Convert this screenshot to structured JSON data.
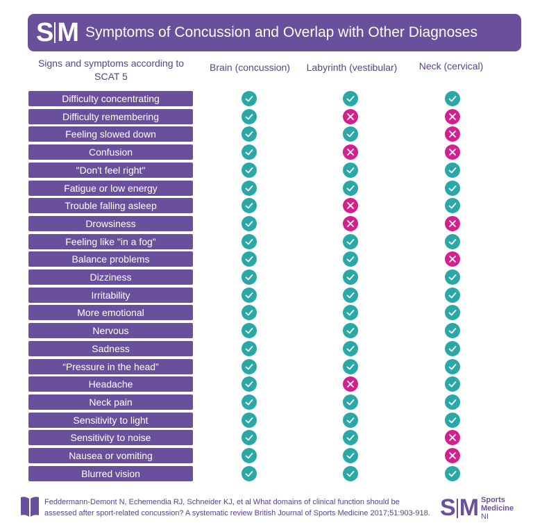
{
  "header": {
    "logo": "SM",
    "title": "Symptoms of Concussion and Overlap with Other Diagnoses"
  },
  "columns": {
    "symptoms": "Signs and symptoms according to SCAT 5",
    "brain": "Brain (concussion)",
    "labyrinth": "Labyrinth (vestibular)",
    "neck": "Neck (cervical)"
  },
  "colors": {
    "purple": "#6a4f9c",
    "check": "#2aa8a8",
    "cross": "#d4208f"
  },
  "rows": [
    {
      "label": "Difficulty concentrating",
      "brain": true,
      "labyrinth": true,
      "neck": true
    },
    {
      "label": "Difficulty remembering",
      "brain": true,
      "labyrinth": false,
      "neck": false
    },
    {
      "label": "Feeling slowed down",
      "brain": true,
      "labyrinth": true,
      "neck": false
    },
    {
      "label": "Confusion",
      "brain": true,
      "labyrinth": false,
      "neck": false
    },
    {
      "label": "\"Don't feel right\"",
      "brain": true,
      "labyrinth": true,
      "neck": true
    },
    {
      "label": "Fatigue or low energy",
      "brain": true,
      "labyrinth": true,
      "neck": true
    },
    {
      "label": "Trouble falling asleep",
      "brain": true,
      "labyrinth": false,
      "neck": true
    },
    {
      "label": "Drowsiness",
      "brain": true,
      "labyrinth": false,
      "neck": false
    },
    {
      "label": "Feeling like \"in a fog\"",
      "brain": true,
      "labyrinth": true,
      "neck": true
    },
    {
      "label": "Balance problems",
      "brain": true,
      "labyrinth": true,
      "neck": false
    },
    {
      "label": "Dizziness",
      "brain": true,
      "labyrinth": true,
      "neck": true
    },
    {
      "label": "Irritability",
      "brain": true,
      "labyrinth": true,
      "neck": true
    },
    {
      "label": "More emotional",
      "brain": true,
      "labyrinth": true,
      "neck": true
    },
    {
      "label": "Nervous",
      "brain": true,
      "labyrinth": true,
      "neck": true
    },
    {
      "label": "Sadness",
      "brain": true,
      "labyrinth": true,
      "neck": true
    },
    {
      "label": "“Pressure in the head”",
      "brain": true,
      "labyrinth": true,
      "neck": true
    },
    {
      "label": "Headache",
      "brain": true,
      "labyrinth": false,
      "neck": true
    },
    {
      "label": "Neck pain",
      "brain": true,
      "labyrinth": true,
      "neck": true
    },
    {
      "label": "Sensitivity to light",
      "brain": true,
      "labyrinth": true,
      "neck": true
    },
    {
      "label": "Sensitivity to noise",
      "brain": true,
      "labyrinth": true,
      "neck": false
    },
    {
      "label": "Nausea or vomiting",
      "brain": true,
      "labyrinth": true,
      "neck": false
    },
    {
      "label": "Blurred vision",
      "brain": true,
      "labyrinth": true,
      "neck": true
    }
  ],
  "footer": {
    "citation": "Feddermann-Demont N, Echemendia RJ, Schneider KJ, et al What domains of clinical function should be assessed after sport-related concussion? A systematic review British Journal of Sports Medicine 2017;51:903-918.",
    "logo_mark": "SM",
    "logo_line1": "Sports",
    "logo_line2": "Medicine",
    "logo_line3": "NI"
  }
}
